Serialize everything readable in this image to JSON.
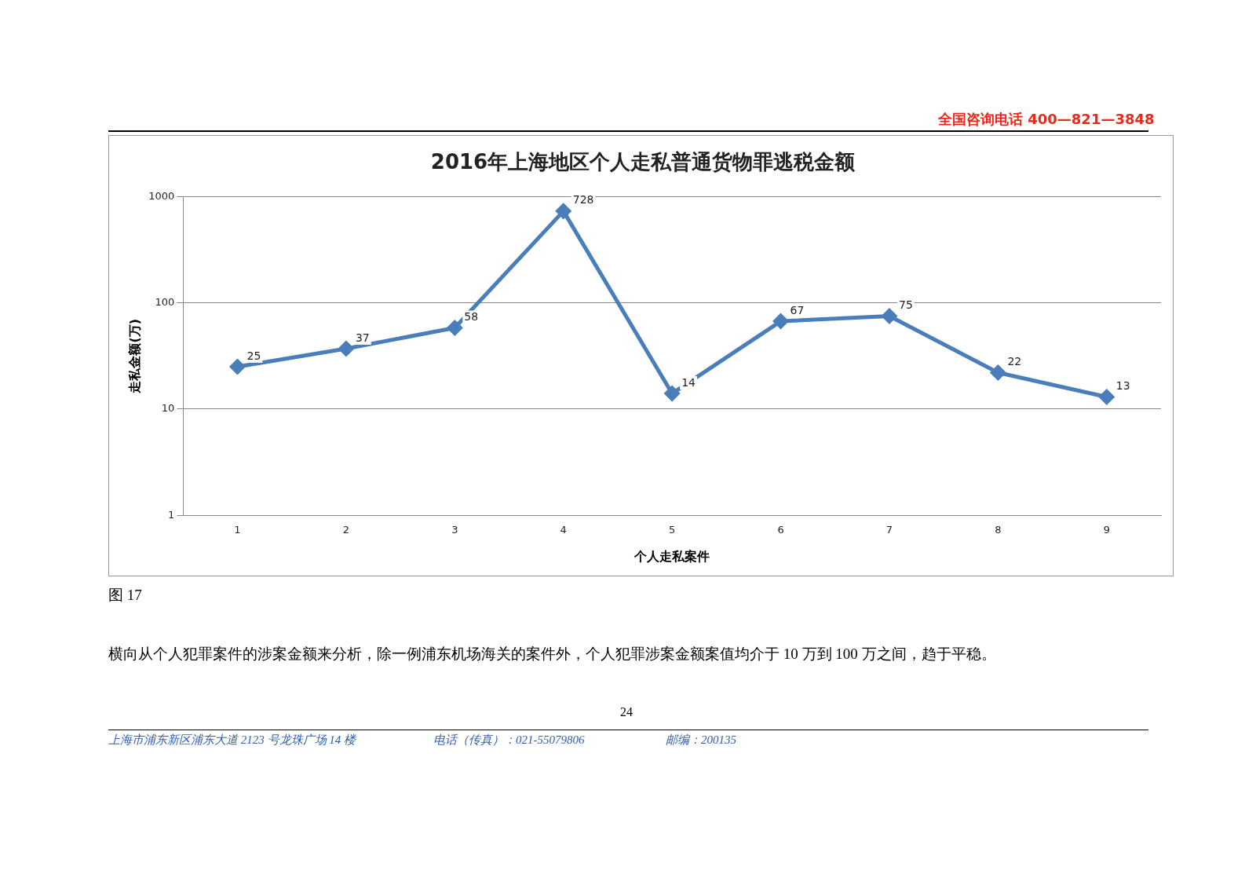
{
  "chart_data": {
    "type": "line",
    "title": "2016年上海地区个人走私普通货物罪逃税金额",
    "xlabel": "个人走私案件",
    "ylabel": "走私金额(万)",
    "categories": [
      "1",
      "2",
      "3",
      "4",
      "5",
      "6",
      "7",
      "8",
      "9"
    ],
    "series": [
      {
        "color": "#4a7ebb",
        "values": [
          25,
          37,
          58,
          728,
          14,
          67,
          75,
          22,
          13
        ]
      }
    ],
    "log": "y",
    "ylim": [
      1,
      1000
    ],
    "yticks": [
      1,
      10,
      100,
      1000
    ],
    "grid": "y",
    "legend": false,
    "marker": "diamond",
    "line_style": "solid",
    "data_labels": true,
    "annotations": [
      "全国咨询电话 400—821—3848",
      "图 17",
      "横向从个人犯罪案件的涉案金额来分析，除一例浦东机场海关的案件外，个人犯罪涉案金额案值均介于 10 万到 100 万之间，趋于平稳。",
      "24",
      "上海市浦东新区浦东大道 2123 号龙珠广场 14 楼",
      "电话（传真）：021-55079806",
      "邮编：200135"
    ]
  }
}
